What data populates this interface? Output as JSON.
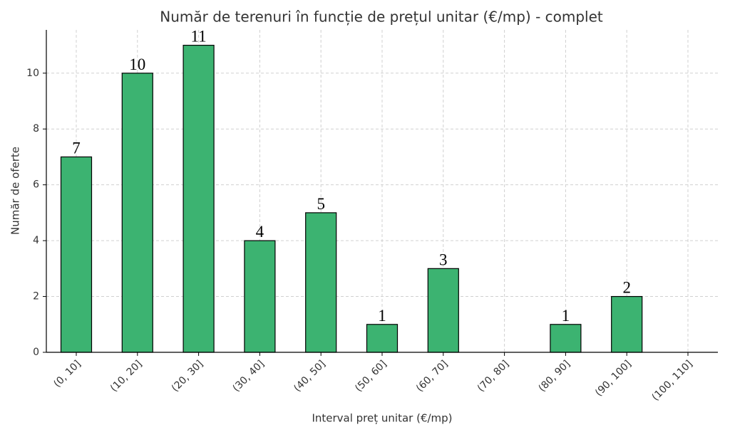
{
  "chart_data": {
    "type": "bar",
    "title": "Număr de terenuri în funcție de prețul unitar (€/mp) - complet",
    "x_label": "Interval preț unitar (€/mp)",
    "y_label": "Număr de oferte",
    "categories": [
      "(0, 10]",
      "(10, 20]",
      "(20, 30]",
      "(30, 40]",
      "(40, 50]",
      "(50, 60]",
      "(60, 70]",
      "(70, 80]",
      "(80, 90]",
      "(90, 100]",
      "(100, 110]"
    ],
    "values": [
      7,
      10,
      11,
      4,
      5,
      1,
      3,
      0,
      1,
      2,
      0
    ],
    "color": "#3cb371",
    "ylim": [
      0,
      11.55
    ],
    "yticks": [
      0,
      2,
      4,
      6,
      8,
      10
    ],
    "grid": true
  }
}
